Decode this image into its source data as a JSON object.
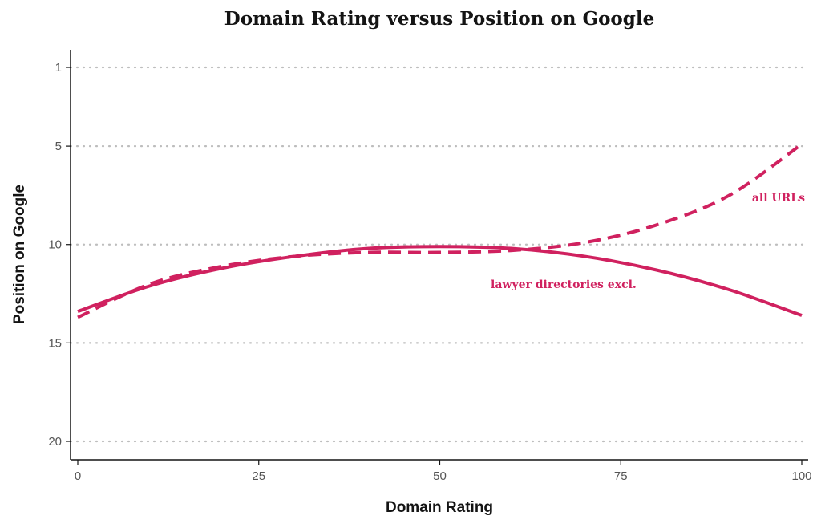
{
  "chart_data": {
    "type": "line",
    "title": "Domain Rating versus Position on Google",
    "xlabel": "Domain Rating",
    "ylabel": "Position on Google",
    "xlim": [
      0,
      100
    ],
    "ylim": [
      1,
      20
    ],
    "y_reversed": true,
    "x_ticks": [
      0,
      25,
      50,
      75,
      100
    ],
    "y_ticks": [
      1,
      5,
      10,
      15,
      20
    ],
    "grid": "horizontal dotted",
    "color": "#d0215f",
    "series": [
      {
        "name": "lawyer directories excl.",
        "style": "solid",
        "x": [
          0,
          10,
          20,
          30,
          40,
          50,
          60,
          70,
          80,
          90,
          100
        ],
        "y": [
          13.4,
          12.1,
          11.2,
          10.6,
          10.2,
          10.1,
          10.2,
          10.6,
          11.3,
          12.3,
          13.6
        ]
      },
      {
        "name": "all URLs",
        "style": "dashed",
        "x": [
          0,
          10,
          20,
          30,
          40,
          50,
          60,
          70,
          80,
          90,
          100
        ],
        "y": [
          13.7,
          12.0,
          11.1,
          10.6,
          10.4,
          10.4,
          10.3,
          9.9,
          9.0,
          7.5,
          4.9
        ]
      }
    ]
  }
}
